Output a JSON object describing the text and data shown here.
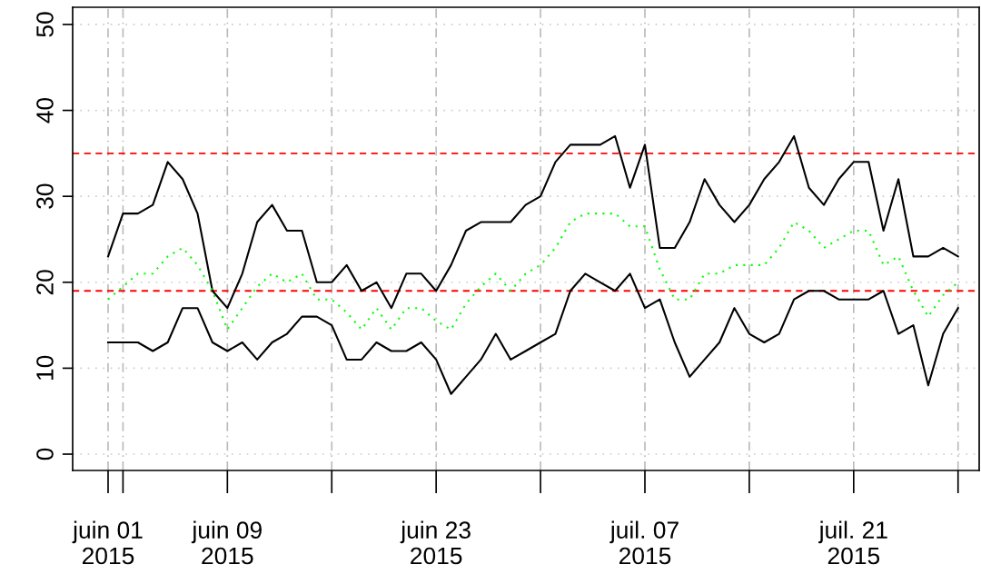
{
  "chart_data": {
    "type": "line",
    "x": [
      "2015-06-01",
      "2015-06-02",
      "2015-06-03",
      "2015-06-04",
      "2015-06-05",
      "2015-06-06",
      "2015-06-07",
      "2015-06-08",
      "2015-06-09",
      "2015-06-10",
      "2015-06-11",
      "2015-06-12",
      "2015-06-13",
      "2015-06-14",
      "2015-06-15",
      "2015-06-16",
      "2015-06-17",
      "2015-06-18",
      "2015-06-19",
      "2015-06-20",
      "2015-06-21",
      "2015-06-22",
      "2015-06-23",
      "2015-06-24",
      "2015-06-25",
      "2015-06-26",
      "2015-06-27",
      "2015-06-28",
      "2015-06-29",
      "2015-06-30",
      "2015-07-01",
      "2015-07-02",
      "2015-07-03",
      "2015-07-04",
      "2015-07-05",
      "2015-07-06",
      "2015-07-07",
      "2015-07-08",
      "2015-07-09",
      "2015-07-10",
      "2015-07-11",
      "2015-07-12",
      "2015-07-13",
      "2015-07-14",
      "2015-07-15",
      "2015-07-16",
      "2015-07-17",
      "2015-07-18",
      "2015-07-19",
      "2015-07-20",
      "2015-07-21",
      "2015-07-22",
      "2015-07-23",
      "2015-07-24",
      "2015-07-25",
      "2015-07-26",
      "2015-07-27",
      "2015-07-28"
    ],
    "series": [
      {
        "color": "#000000",
        "line_style": "solid",
        "values": [
          23,
          28,
          28,
          29,
          34,
          32,
          28,
          19,
          17,
          21,
          27,
          29,
          26,
          26,
          20,
          20,
          22,
          19,
          20,
          17,
          21,
          21,
          19,
          22,
          26,
          27,
          27,
          27,
          29,
          30,
          34,
          36,
          36,
          36,
          37,
          31,
          36,
          24,
          24,
          27,
          32,
          29,
          27,
          29,
          32,
          34,
          37,
          31,
          29,
          32,
          34,
          34,
          26,
          32,
          23,
          23,
          24,
          23
        ]
      },
      {
        "color": "#000000",
        "line_style": "solid",
        "values": [
          13,
          13,
          13,
          12,
          13,
          17,
          17,
          13,
          12,
          13,
          11,
          13,
          14,
          16,
          16,
          15,
          11,
          11,
          13,
          12,
          12,
          13,
          11,
          7,
          9,
          11,
          14,
          11,
          12,
          13,
          14,
          19,
          21,
          20,
          19,
          21,
          17,
          18,
          13,
          9,
          11,
          13,
          17,
          14,
          13,
          14,
          18,
          19,
          19,
          18,
          18,
          18,
          19,
          14,
          15,
          8,
          14,
          17
        ]
      },
      {
        "color": "#00ff00",
        "line_style": "dotted",
        "values": [
          18,
          19.5,
          21,
          21,
          23,
          24,
          22,
          19,
          14.5,
          17,
          19.5,
          21,
          20,
          21,
          18,
          18,
          16.5,
          14.5,
          17,
          14.5,
          17,
          17,
          15.5,
          14.5,
          17.5,
          19.5,
          21,
          19,
          21,
          22,
          24,
          27,
          28,
          28,
          28,
          26.5,
          26.5,
          21.5,
          18,
          18,
          21,
          21,
          22,
          22,
          22,
          24,
          27,
          26,
          24,
          25,
          26,
          26,
          22,
          23,
          19,
          16,
          18.5,
          20
        ]
      }
    ],
    "ref_lines": [
      {
        "axis": "y",
        "value": 35,
        "color": "#ff0000",
        "line_style": "dashed"
      },
      {
        "axis": "y",
        "value": 19,
        "color": "#ff0000",
        "line_style": "dashed"
      }
    ],
    "xlim": [
      "2015-05-29T15:00",
      "2015-07-29T10:00"
    ],
    "xticks": [
      {
        "value": "2015-06-01",
        "label": "juin 01\n2015"
      },
      {
        "value": "2015-06-02",
        "label": null
      },
      {
        "value": "2015-06-09",
        "label": "juin 09\n2015"
      },
      {
        "value": "2015-06-16",
        "label": null
      },
      {
        "value": "2015-06-23",
        "label": "juin 23\n2015"
      },
      {
        "value": "2015-06-30",
        "label": null
      },
      {
        "value": "2015-07-07",
        "label": "juil. 07\n2015"
      },
      {
        "value": "2015-07-14",
        "label": null
      },
      {
        "value": "2015-07-21",
        "label": "juil. 21\n2015"
      },
      {
        "value": "2015-07-28",
        "label": null
      }
    ],
    "ylim": [
      -1.9,
      52
    ],
    "yticks": [
      0,
      10,
      20,
      30,
      40,
      50
    ],
    "grid": true,
    "legend": false,
    "marker": "none"
  }
}
